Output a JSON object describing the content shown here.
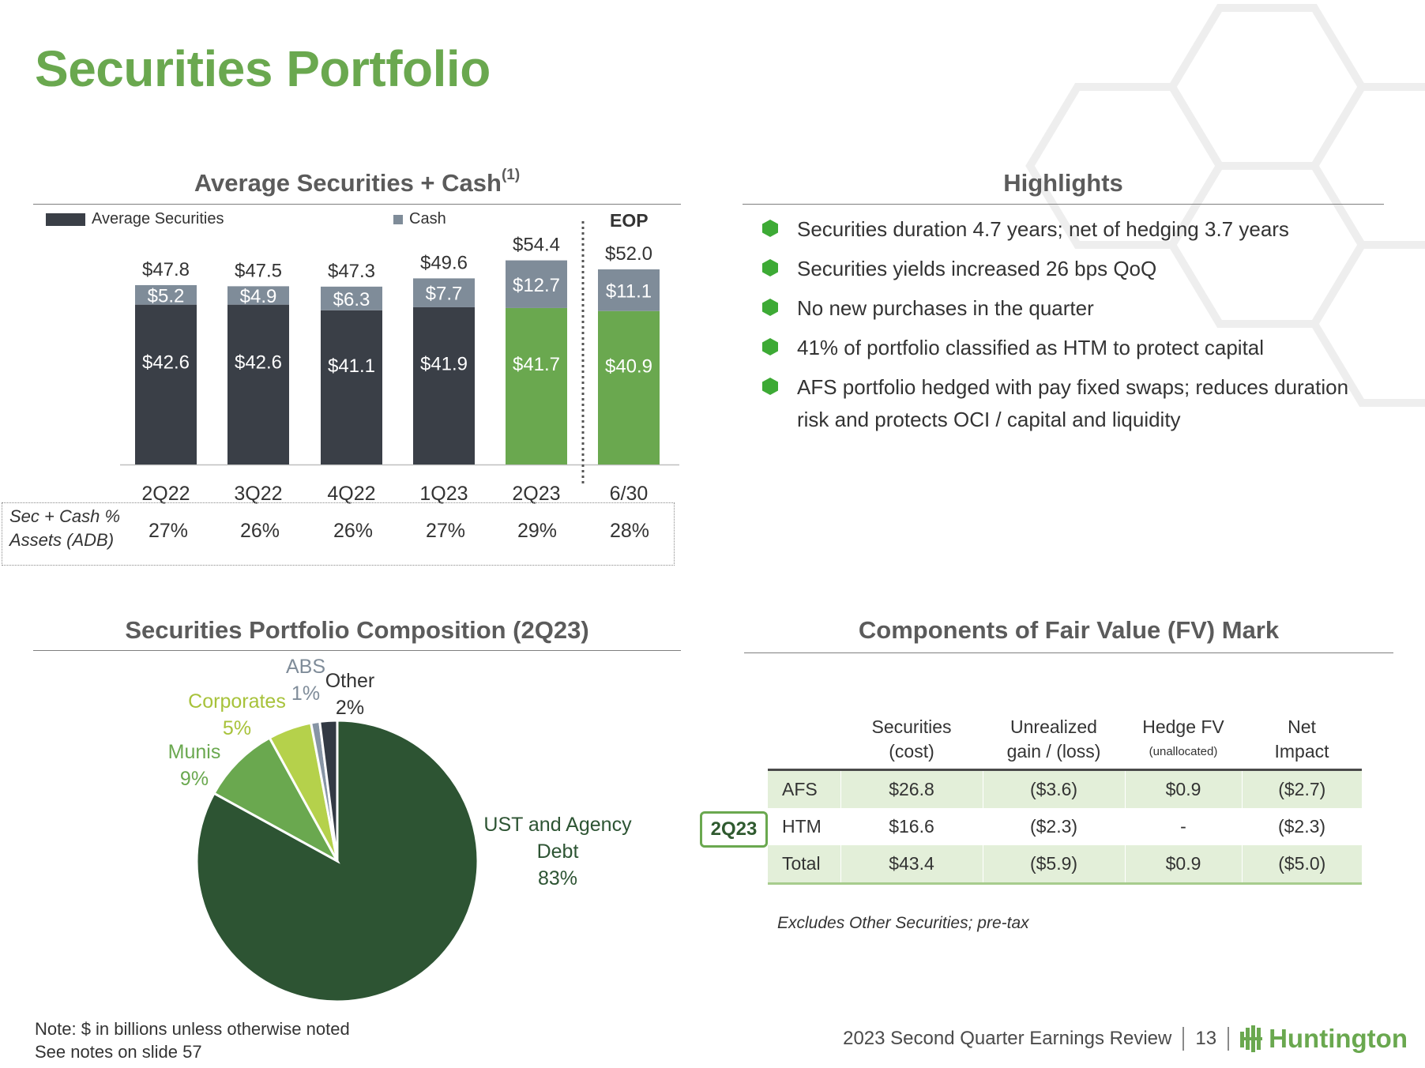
{
  "title": "Securities Portfolio",
  "chart1": {
    "title": "Average Securities + Cash",
    "title_sup": "(1)",
    "legend": [
      "Average Securities",
      "Cash"
    ],
    "eop_label": "EOP"
  },
  "pct_row": {
    "label_line1": "Sec + Cash %",
    "label_line2": "Assets (ADB)",
    "values": [
      "27%",
      "26%",
      "26%",
      "27%",
      "29%",
      "28%"
    ]
  },
  "highlights": {
    "title": "Highlights",
    "items": [
      "Securities duration 4.7 years; net of hedging 3.7 years",
      "Securities yields increased 26 bps QoQ",
      "No new purchases in the quarter",
      "41% of portfolio classified as HTM to protect capital",
      "AFS portfolio hedged with pay fixed swaps; reduces duration risk and protects OCI / capital and liquidity"
    ]
  },
  "chart2": {
    "title": "Securities Portfolio Composition (2Q23)"
  },
  "fv": {
    "title": "Components of Fair Value (FV) Mark",
    "badge": "2Q23",
    "headers": [
      {
        "l1": "Securities",
        "l2": "(cost)"
      },
      {
        "l1": "Unrealized",
        "l2": "gain / (loss)"
      },
      {
        "l1": "Hedge FV",
        "l2": "(unallocated)"
      },
      {
        "l1": "Net",
        "l2": "Impact"
      }
    ],
    "rows": [
      {
        "label": "AFS",
        "cells": [
          "$26.8",
          "($3.6)",
          "$0.9",
          "($2.7)"
        ]
      },
      {
        "label": "HTM",
        "cells": [
          "$16.6",
          "($2.3)",
          "-",
          "($2.3)"
        ]
      },
      {
        "label": "Total",
        "cells": [
          "$43.4",
          "($5.9)",
          "$0.9",
          "($5.0)"
        ]
      }
    ],
    "note": "Excludes Other Securities; pre-tax"
  },
  "footer": {
    "note_line1": "Note: $ in billions unless otherwise noted",
    "note_line2": "See notes on slide 57",
    "review": "2023 Second Quarter Earnings Review",
    "page": "13",
    "brand": "Huntington"
  },
  "chart_data": [
    {
      "type": "bar",
      "title": "Average Securities + Cash(1)",
      "stacked": true,
      "categories": [
        "2Q22",
        "3Q22",
        "4Q22",
        "1Q23",
        "2Q23",
        "6/30"
      ],
      "series": [
        {
          "name": "Average Securities",
          "values": [
            42.6,
            42.6,
            41.1,
            41.9,
            41.7,
            40.9
          ],
          "labels": [
            "$42.6",
            "$42.6",
            "$41.1",
            "$41.9",
            "$41.7",
            "$40.9"
          ]
        },
        {
          "name": "Cash",
          "values": [
            5.2,
            4.9,
            6.3,
            7.7,
            12.7,
            11.1
          ],
          "labels": [
            "$5.2",
            "$4.9",
            "$6.3",
            "$7.7",
            "$12.7",
            "$11.1"
          ]
        }
      ],
      "totals": [
        47.8,
        47.5,
        47.3,
        49.6,
        54.4,
        52.0
      ],
      "total_labels": [
        "$47.8",
        "$47.5",
        "$47.3",
        "$49.6",
        "$54.4",
        "$52.0"
      ],
      "highlight_colors": {
        "securities_default": "#3a3f47",
        "securities_highlight": "#6aa84f",
        "cash": "#7f8c99"
      },
      "highlight_categories": [
        "2Q23",
        "6/30"
      ],
      "legend_position": "top",
      "grid": false
    },
    {
      "type": "pie",
      "title": "Securities Portfolio Composition (2Q23)",
      "slices": [
        {
          "label": "UST and Agency Debt",
          "value": 83,
          "value_label": "83%",
          "color": "#2d5433"
        },
        {
          "label": "Munis",
          "value": 9,
          "value_label": "9%",
          "color": "#6aa84f"
        },
        {
          "label": "Corporates",
          "value": 5,
          "value_label": "5%",
          "color": "#b5d14b"
        },
        {
          "label": "ABS",
          "value": 1,
          "value_label": "1%",
          "color": "#8795a5"
        },
        {
          "label": "Other",
          "value": 2,
          "value_label": "2%",
          "color": "#333a44"
        }
      ]
    }
  ]
}
